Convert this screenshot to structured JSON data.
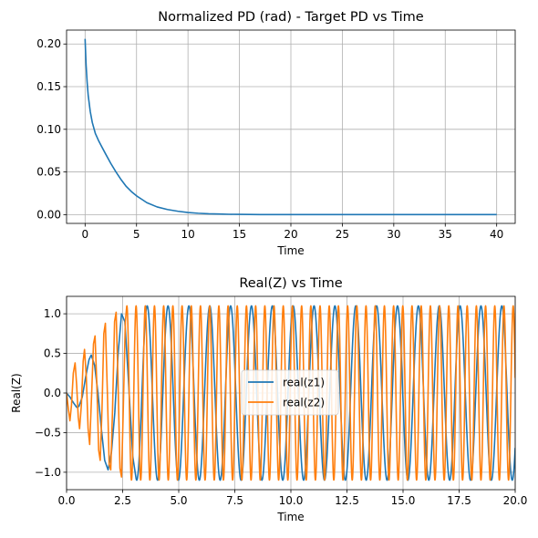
{
  "chart_data": [
    {
      "type": "line",
      "title": "Normalized PD (rad) - Target PD vs Time",
      "xlabel": "Time",
      "ylabel": "",
      "xlim": [
        -1.8,
        41.8
      ],
      "ylim": [
        -0.0103,
        0.2163
      ],
      "xticks": [
        0,
        5,
        10,
        15,
        20,
        25,
        30,
        35,
        40
      ],
      "xtick_labels": [
        "0",
        "5",
        "10",
        "15",
        "20",
        "25",
        "30",
        "35",
        "40"
      ],
      "yticks": [
        0.0,
        0.05,
        0.1,
        0.15,
        0.2
      ],
      "ytick_labels": [
        "0.00",
        "0.05",
        "0.10",
        "0.15",
        "0.20"
      ],
      "grid": true,
      "legend": null,
      "series": [
        {
          "color": "#1f77b4",
          "x": [
            0,
            0.1,
            0.2,
            0.3,
            0.5,
            0.7,
            1,
            1.3,
            1.6,
            2,
            2.5,
            3,
            3.5,
            4,
            4.5,
            5,
            5.5,
            6,
            7,
            8,
            9,
            10,
            11,
            12,
            13,
            14,
            15,
            17,
            20,
            25,
            30,
            35,
            40
          ],
          "y": [
            0.206,
            0.175,
            0.155,
            0.14,
            0.121,
            0.108,
            0.095,
            0.087,
            0.08,
            0.071,
            0.06,
            0.05,
            0.041,
            0.033,
            0.027,
            0.022,
            0.018,
            0.014,
            0.009,
            0.006,
            0.004,
            0.0025,
            0.0016,
            0.001,
            0.0007,
            0.0004,
            0.0003,
            0.0001,
            0,
            0,
            0,
            0,
            0
          ]
        }
      ]
    },
    {
      "type": "line",
      "title": "Real(Z) vs Time",
      "xlabel": "Time",
      "ylabel": "Real(Z)",
      "xlim": [
        0,
        20
      ],
      "ylim": [
        -1.22,
        1.22
      ],
      "xticks": [
        0,
        2.5,
        5,
        7.5,
        10,
        12.5,
        15,
        17.5,
        20
      ],
      "xtick_labels": [
        "0.0",
        "2.5",
        "5.0",
        "7.5",
        "10.0",
        "12.5",
        "15.0",
        "17.5",
        "20.0"
      ],
      "yticks": [
        -1.0,
        -0.5,
        0.0,
        0.5,
        1.0
      ],
      "ytick_labels": [
        "−1.0",
        "−0.5",
        "0.0",
        "0.5",
        "1.0"
      ],
      "grid": true,
      "legend": "center",
      "series": [
        {
          "name": "real(z1)",
          "color": "#1f77b4",
          "steady_amplitude": 1.1,
          "steady_period": 0.93,
          "transient": [
            [
              0,
              0
            ],
            [
              0.15,
              -0.05
            ],
            [
              0.3,
              -0.12
            ],
            [
              0.45,
              -0.18
            ],
            [
              0.55,
              -0.17
            ],
            [
              0.7,
              -0.05
            ],
            [
              0.85,
              0.2
            ],
            [
              1.0,
              0.42
            ],
            [
              1.1,
              0.48
            ],
            [
              1.25,
              0.35
            ],
            [
              1.4,
              0.0
            ],
            [
              1.55,
              -0.45
            ],
            [
              1.7,
              -0.85
            ],
            [
              1.85,
              -0.97
            ],
            [
              2.0,
              -0.75
            ],
            [
              2.15,
              -0.25
            ],
            [
              2.3,
              0.5
            ],
            [
              2.45,
              1.0
            ],
            [
              2.6,
              0.9
            ],
            [
              2.75,
              0.2
            ],
            [
              2.95,
              -0.8
            ],
            [
              3.1,
              -1.08
            ]
          ]
        },
        {
          "name": "real(z2)",
          "color": "#ff7f0e",
          "steady_amplitude": 1.1,
          "steady_period": 0.41,
          "transient": [
            [
              0,
              0
            ],
            [
              0.08,
              -0.2
            ],
            [
              0.15,
              -0.35
            ],
            [
              0.22,
              -0.15
            ],
            [
              0.3,
              0.25
            ],
            [
              0.38,
              0.38
            ],
            [
              0.45,
              0.1
            ],
            [
              0.52,
              -0.3
            ],
            [
              0.58,
              -0.45
            ],
            [
              0.66,
              -0.15
            ],
            [
              0.74,
              0.4
            ],
            [
              0.8,
              0.55
            ],
            [
              0.88,
              0.2
            ],
            [
              0.96,
              -0.45
            ],
            [
              1.03,
              -0.65
            ],
            [
              1.12,
              0.0
            ],
            [
              1.2,
              0.62
            ],
            [
              1.27,
              0.72
            ],
            [
              1.35,
              0.1
            ],
            [
              1.43,
              -0.72
            ],
            [
              1.5,
              -0.85
            ],
            [
              1.58,
              -0.2
            ],
            [
              1.66,
              0.75
            ],
            [
              1.73,
              0.88
            ],
            [
              1.82,
              0.0
            ],
            [
              1.9,
              -0.9
            ],
            [
              1.97,
              -0.97
            ],
            [
              2.05,
              -0.2
            ],
            [
              2.14,
              0.9
            ],
            [
              2.21,
              1.02
            ],
            [
              2.29,
              0.2
            ],
            [
              2.38,
              -0.95
            ],
            [
              2.45,
              -1.06
            ],
            [
              2.52,
              -0.3
            ],
            [
              2.62,
              0.9
            ],
            [
              2.68,
              1.09
            ]
          ]
        }
      ]
    }
  ]
}
